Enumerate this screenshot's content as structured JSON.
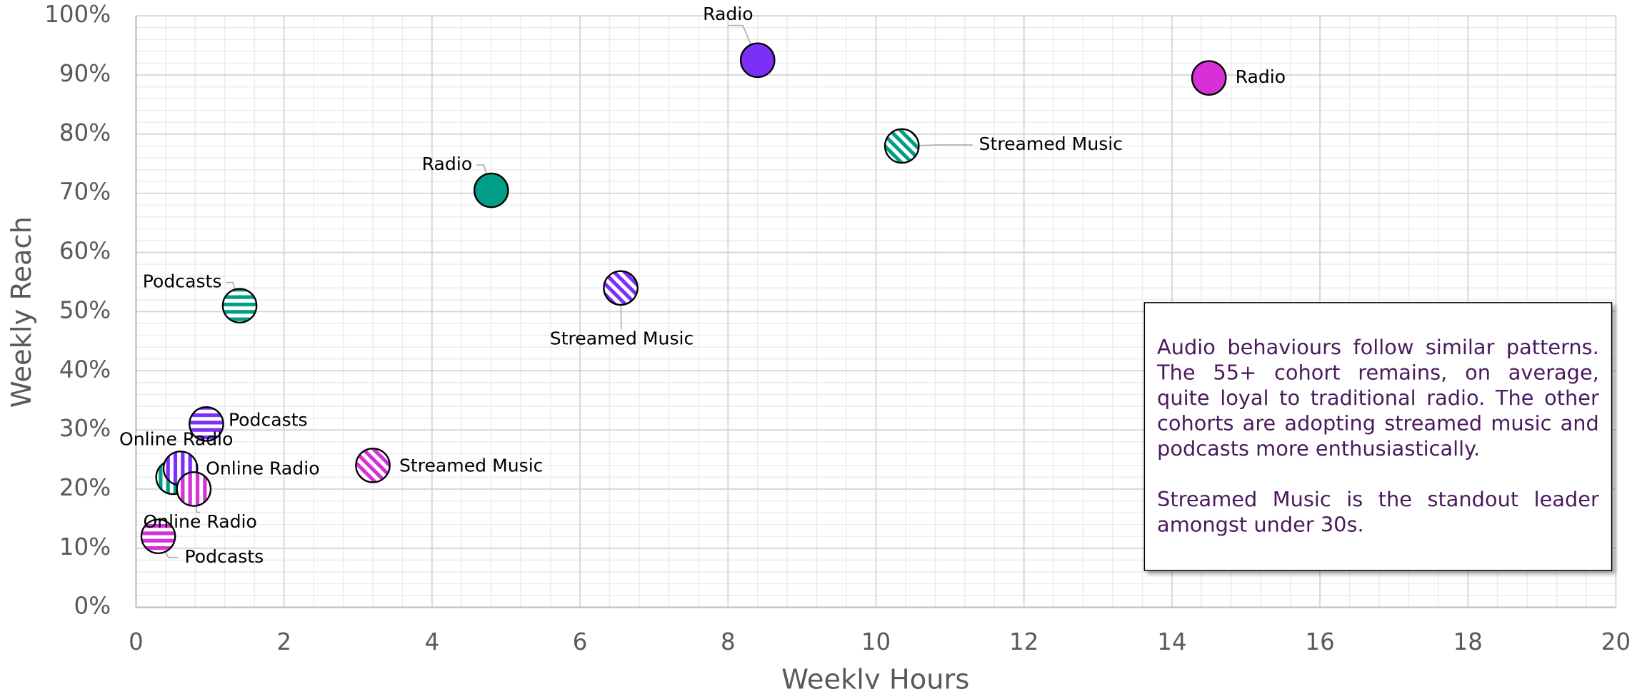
{
  "chart_data": {
    "type": "scatter",
    "xlabel": "Weekly Hours",
    "ylabel": "Weekly Reach",
    "xlim": [
      0,
      20
    ],
    "ylim": [
      0,
      100
    ],
    "xticks": [
      0,
      2,
      4,
      6,
      8,
      10,
      12,
      14,
      16,
      18,
      20
    ],
    "yticks": [
      {
        "value": 0,
        "label": "0%"
      },
      {
        "value": 10,
        "label": "10%"
      },
      {
        "value": 20,
        "label": "20%"
      },
      {
        "value": 30,
        "label": "30%"
      },
      {
        "value": 40,
        "label": "40%"
      },
      {
        "value": 50,
        "label": "50%"
      },
      {
        "value": 60,
        "label": "60%"
      },
      {
        "value": 70,
        "label": "70%"
      },
      {
        "value": 80,
        "label": "80%"
      },
      {
        "value": 90,
        "label": "90%"
      },
      {
        "value": 100,
        "label": "100%"
      }
    ],
    "grid": true,
    "series": [
      {
        "color": "#009e86",
        "labels": [
          "Radio",
          "Streamed Music",
          "Podcasts",
          "Online Radio"
        ],
        "patterns": [
          "solid",
          "diagonal",
          "horizontal",
          "vertical"
        ],
        "x": [
          4.8,
          10.35,
          1.4,
          0.5
        ],
        "y": [
          70.5,
          78,
          51,
          22
        ]
      },
      {
        "color": "#7b2ff7",
        "labels": [
          "Radio",
          "Streamed Music",
          "Podcasts",
          "Online Radio"
        ],
        "patterns": [
          "solid",
          "diagonal",
          "horizontal",
          "vertical"
        ],
        "x": [
          8.4,
          6.55,
          0.95,
          0.6
        ],
        "y": [
          92.5,
          54,
          31,
          23.5
        ]
      },
      {
        "color": "#d630d6",
        "labels": [
          "Radio",
          "Streamed Music",
          "Podcasts",
          "Online Radio"
        ],
        "patterns": [
          "solid",
          "diagonal",
          "horizontal",
          "vertical"
        ],
        "x": [
          14.5,
          3.2,
          0.3,
          0.78
        ],
        "y": [
          89.5,
          24,
          12,
          20
        ]
      }
    ],
    "annotation": [
      "Audio behaviours follow similar patterns. The 55+ cohort remains, on average, quite loyal to traditional radio.  The other cohorts are adopting streamed music and podcasts more enthusiastically.",
      "Streamed Music is the standout leader amongst under 30s."
    ]
  }
}
